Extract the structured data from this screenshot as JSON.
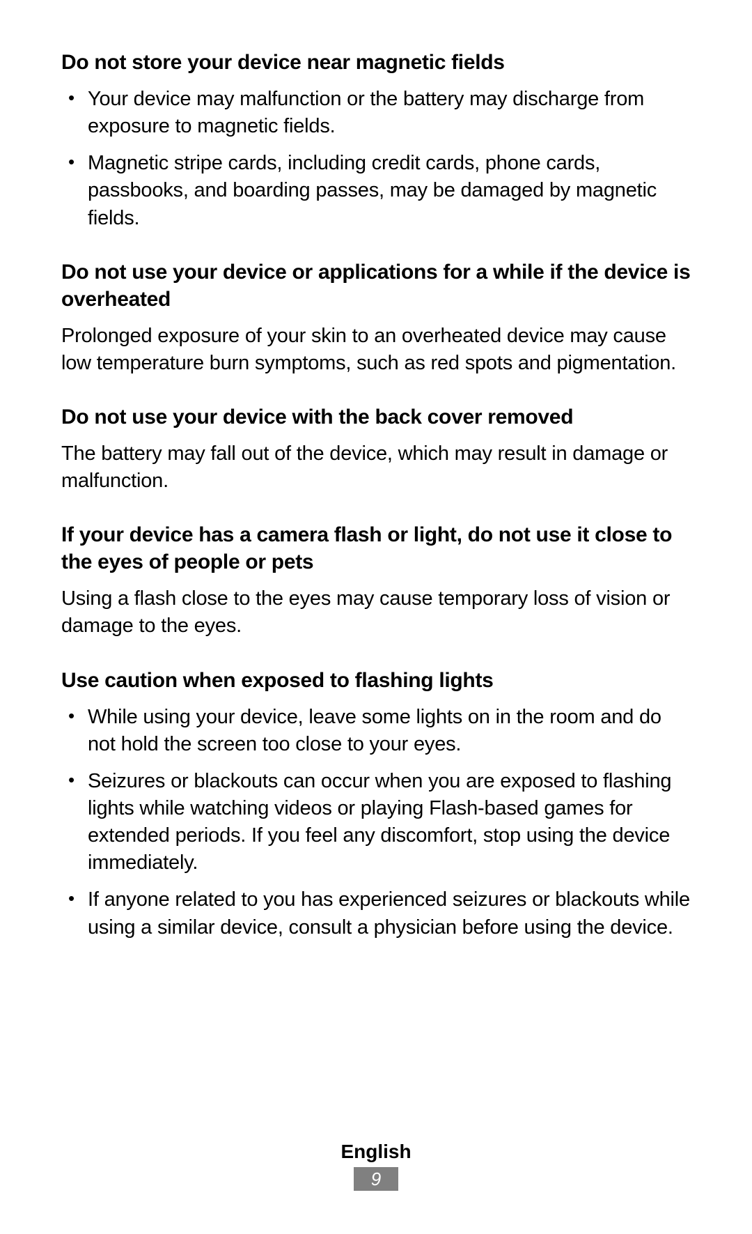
{
  "sections": [
    {
      "heading": "Do not store your device near magnetic fields",
      "bullets": [
        "Your device may malfunction or the battery may discharge from exposure to magnetic fields.",
        "Magnetic stripe cards, including credit cards, phone cards, passbooks, and boarding passes, may be damaged by magnetic fields."
      ]
    },
    {
      "heading": "Do not use your device or applications for a while if the device is overheated",
      "para": "Prolonged exposure of your skin to an overheated device may cause low temperature burn symptoms, such as red spots and pigmentation."
    },
    {
      "heading": "Do not use your device with the back cover removed",
      "para": "The battery may fall out of the device, which may result in damage or malfunction."
    },
    {
      "heading": "If your device has a camera flash or light, do not use it close to the eyes of people or pets",
      "para": "Using a flash close to the eyes may cause temporary loss of vision or damage to the eyes."
    },
    {
      "heading": "Use caution when exposed to flashing lights",
      "bullets": [
        "While using your device, leave some lights on in the room and do not hold the screen too close to your eyes.",
        "Seizures or blackouts can occur when you are exposed to flashing lights while watching videos or playing Flash-based games for extended periods. If you feel any discomfort, stop using the device immediately.",
        "If anyone related to you has experienced seizures or blackouts while using a similar device, consult a physician before using the device."
      ]
    }
  ],
  "footer": {
    "language": "English",
    "page_number": "9",
    "page_bg": "#808080",
    "page_color": "#ffffff"
  },
  "style": {
    "text_color": "#000000",
    "background_color": "#ffffff",
    "heading_fontsize": 30,
    "body_fontsize": 29
  }
}
